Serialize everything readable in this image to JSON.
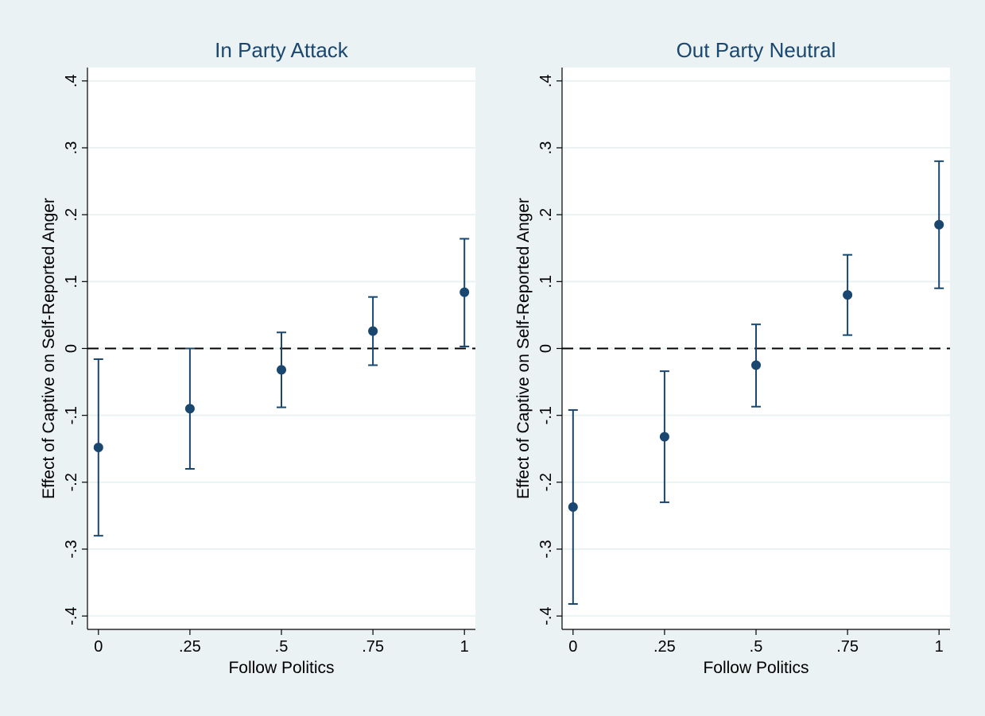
{
  "chart_data": [
    {
      "type": "scatter",
      "title": "In Party Attack",
      "xlabel": "Follow Politics",
      "ylabel": "Effect of Captive on Self-Reported Anger",
      "x_ticks": [
        0,
        0.25,
        0.5,
        0.75,
        1
      ],
      "x_tick_labels": [
        "0",
        ".25",
        ".5",
        ".75",
        "1"
      ],
      "xlim": [
        -0.03,
        1.03
      ],
      "y_ticks": [
        -0.4,
        -0.3,
        -0.2,
        -0.1,
        0,
        0.1,
        0.2,
        0.3,
        0.4
      ],
      "y_tick_labels": [
        "-.4",
        "-.3",
        "-.2",
        "-.1",
        "0",
        ".1",
        ".2",
        ".3",
        ".4"
      ],
      "ylim": [
        -0.42,
        0.42
      ],
      "grid": true,
      "reference_line": {
        "y": 0,
        "style": "dashed"
      },
      "points": [
        {
          "x": 0,
          "y": -0.148,
          "lower": -0.28,
          "upper": -0.016
        },
        {
          "x": 0.25,
          "y": -0.09,
          "lower": -0.18,
          "upper": 0.0
        },
        {
          "x": 0.5,
          "y": -0.032,
          "lower": -0.088,
          "upper": 0.024
        },
        {
          "x": 0.75,
          "y": 0.026,
          "lower": -0.025,
          "upper": 0.077
        },
        {
          "x": 1,
          "y": 0.084,
          "lower": 0.003,
          "upper": 0.164
        }
      ]
    },
    {
      "type": "scatter",
      "title": "Out Party Neutral",
      "xlabel": "Follow Politics",
      "ylabel": "Effect of Captive on Self-Reported Anger",
      "x_ticks": [
        0,
        0.25,
        0.5,
        0.75,
        1
      ],
      "x_tick_labels": [
        "0",
        ".25",
        ".5",
        ".75",
        "1"
      ],
      "xlim": [
        -0.03,
        1.03
      ],
      "y_ticks": [
        -0.4,
        -0.3,
        -0.2,
        -0.1,
        0,
        0.1,
        0.2,
        0.3,
        0.4
      ],
      "y_tick_labels": [
        "-.4",
        "-.3",
        "-.2",
        "-.1",
        "0",
        ".1",
        ".2",
        ".3",
        ".4"
      ],
      "ylim": [
        -0.42,
        0.42
      ],
      "grid": true,
      "reference_line": {
        "y": 0,
        "style": "dashed"
      },
      "points": [
        {
          "x": 0,
          "y": -0.237,
          "lower": -0.382,
          "upper": -0.092
        },
        {
          "x": 0.25,
          "y": -0.132,
          "lower": -0.23,
          "upper": -0.034
        },
        {
          "x": 0.5,
          "y": -0.025,
          "lower": -0.087,
          "upper": 0.036
        },
        {
          "x": 0.75,
          "y": 0.08,
          "lower": 0.02,
          "upper": 0.14
        },
        {
          "x": 1,
          "y": 0.185,
          "lower": 0.09,
          "upper": 0.28
        }
      ]
    }
  ],
  "colors": {
    "outer_background": "#eaf2f3",
    "plot_background": "#ffffff",
    "marker": "#1a476f",
    "gridline": "#eaf2f3",
    "axis": "#000000",
    "reference_line": "#000000"
  }
}
